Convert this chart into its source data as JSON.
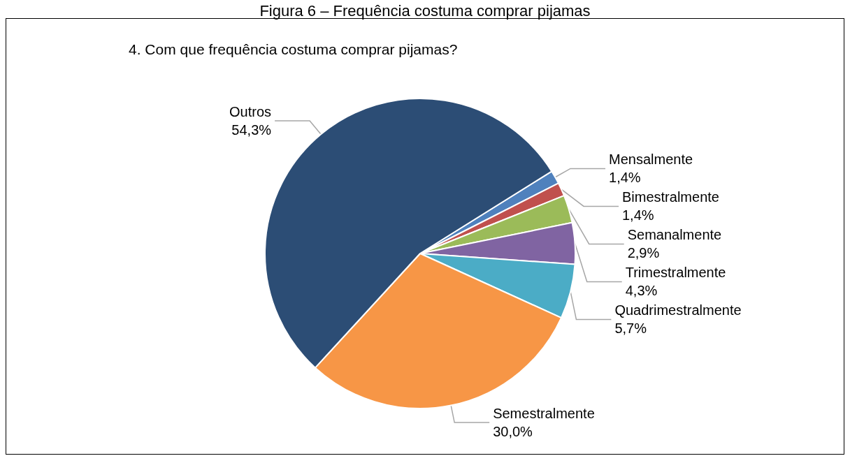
{
  "chart_data": {
    "type": "pie",
    "title": "Figura 6 – Frequência costuma comprar pijamas",
    "subtitle": "4. Com que frequência costuma comprar pijamas?",
    "categories": [
      "Mensalmente",
      "Bimestralmente",
      "Semanalmente",
      "Trimestralmente",
      "Quadrimestralmente",
      "Semestralmente",
      "Outros"
    ],
    "values": [
      1.4,
      1.4,
      2.9,
      4.3,
      5.7,
      30.0,
      54.3
    ],
    "value_labels": [
      "1,4%",
      "1,4%",
      "2,9%",
      "4,3%",
      "5,7%",
      "30,0%",
      "54,3%"
    ],
    "colors": [
      "#4f81bd",
      "#c0504d",
      "#9bbb59",
      "#8064a2",
      "#4bacc6",
      "#f79646",
      "#2c4d75"
    ],
    "legend": false
  }
}
